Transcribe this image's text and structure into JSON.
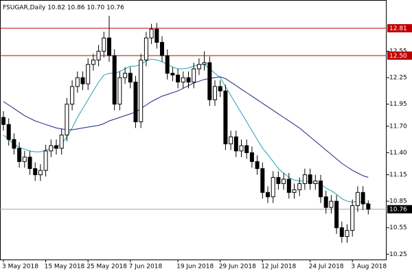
{
  "chart_data": {
    "type": "candlestick",
    "title": "FSUGAR,Daily  10.82 10.86 10.70 10.76",
    "categories": [
      "3 May 2018",
      null,
      null,
      null,
      null,
      null,
      null,
      null,
      "15 May 2018",
      null,
      null,
      null,
      null,
      null,
      null,
      null,
      "25 May 2018",
      null,
      null,
      null,
      null,
      null,
      null,
      null,
      "7 Jun 2018",
      null,
      null,
      null,
      null,
      null,
      null,
      null,
      null,
      "19 Jun 2018",
      null,
      null,
      null,
      null,
      null,
      null,
      null,
      "29 Jun 2018",
      null,
      null,
      null,
      null,
      null,
      null,
      null,
      "12 Jul 2018",
      null,
      null,
      null,
      null,
      null,
      null,
      null,
      null,
      "24 Jul 2018",
      null,
      null,
      null,
      null,
      null,
      null,
      null,
      "3 Aug 2018",
      null,
      null,
      null
    ],
    "candles": {
      "open": [
        11.8,
        11.72,
        11.55,
        11.45,
        11.3,
        11.35,
        11.22,
        11.15,
        11.2,
        11.42,
        11.48,
        11.45,
        11.6,
        11.95,
        12.15,
        12.25,
        12.18,
        12.4,
        12.45,
        12.55,
        12.7,
        12.5,
        11.95,
        12.25,
        12.3,
        12.2,
        11.75,
        12.45,
        12.7,
        12.8,
        12.65,
        12.5,
        12.3,
        12.28,
        12.2,
        12.25,
        12.2,
        12.35,
        12.4,
        12.42,
        12.0,
        12.15,
        12.1,
        11.5,
        11.58,
        11.42,
        11.48,
        11.4,
        11.3,
        11.22,
        10.95,
        10.9,
        11.12,
        11.05,
        11.1,
        10.95,
        10.98,
        11.05,
        11.15,
        11.05,
        11.08,
        10.9,
        10.78,
        10.85,
        10.55,
        10.45,
        10.52,
        10.8,
        10.95,
        10.82
      ],
      "high": [
        11.87,
        11.79,
        11.62,
        11.52,
        11.42,
        11.42,
        11.29,
        11.27,
        11.49,
        11.55,
        11.55,
        11.67,
        12.02,
        12.22,
        12.32,
        12.32,
        12.47,
        12.52,
        12.62,
        12.77,
        12.95,
        12.57,
        12.32,
        12.37,
        12.37,
        12.27,
        12.52,
        12.77,
        12.86,
        12.87,
        12.72,
        12.57,
        12.37,
        12.35,
        12.32,
        12.32,
        12.42,
        12.47,
        12.55,
        12.49,
        12.22,
        12.22,
        12.17,
        11.65,
        11.65,
        11.55,
        11.55,
        11.47,
        11.37,
        11.29,
        11.02,
        11.19,
        11.19,
        11.17,
        11.17,
        11.05,
        11.12,
        11.22,
        11.22,
        11.15,
        11.15,
        10.97,
        10.92,
        10.92,
        10.62,
        10.59,
        10.87,
        11.02,
        11.02,
        10.86
      ],
      "low": [
        11.65,
        11.48,
        11.38,
        11.23,
        11.23,
        11.15,
        11.08,
        11.08,
        11.13,
        11.35,
        11.38,
        11.38,
        11.53,
        11.88,
        12.08,
        12.11,
        12.11,
        12.33,
        12.38,
        12.48,
        12.43,
        11.88,
        11.88,
        12.18,
        12.13,
        11.68,
        11.68,
        12.38,
        12.63,
        12.58,
        12.43,
        12.23,
        12.21,
        12.13,
        12.13,
        12.13,
        12.13,
        12.28,
        12.33,
        11.93,
        11.93,
        12.03,
        11.43,
        11.43,
        11.35,
        11.35,
        11.33,
        11.23,
        11.15,
        10.88,
        10.83,
        10.83,
        10.98,
        10.98,
        10.88,
        10.88,
        10.91,
        10.98,
        10.98,
        10.98,
        10.83,
        10.71,
        10.71,
        10.48,
        10.38,
        10.38,
        10.45,
        10.73,
        10.75,
        10.7
      ],
      "close": [
        11.72,
        11.55,
        11.45,
        11.3,
        11.35,
        11.22,
        11.15,
        11.2,
        11.42,
        11.48,
        11.45,
        11.6,
        11.95,
        12.15,
        12.25,
        12.18,
        12.4,
        12.45,
        12.55,
        12.7,
        12.5,
        11.95,
        12.25,
        12.3,
        12.2,
        11.75,
        12.45,
        12.7,
        12.8,
        12.65,
        12.5,
        12.3,
        12.28,
        12.2,
        12.25,
        12.2,
        12.35,
        12.4,
        12.42,
        12.0,
        12.15,
        12.1,
        11.5,
        11.58,
        11.42,
        11.48,
        11.4,
        11.3,
        11.22,
        10.95,
        10.9,
        11.12,
        11.05,
        11.1,
        10.95,
        10.98,
        11.05,
        11.15,
        11.05,
        11.08,
        10.9,
        10.78,
        10.85,
        10.55,
        10.45,
        10.52,
        10.8,
        10.95,
        10.82,
        10.76
      ]
    },
    "series": [
      {
        "color": "#20a0b0",
        "values": [
          11.6,
          11.55,
          11.5,
          11.46,
          11.44,
          11.42,
          11.41,
          11.41,
          11.43,
          11.45,
          11.47,
          11.5,
          11.58,
          11.68,
          11.8,
          11.9,
          12.0,
          12.1,
          12.2,
          12.28,
          12.3,
          12.3,
          12.32,
          12.35,
          12.38,
          12.38,
          12.4,
          12.44,
          12.46,
          12.45,
          12.43,
          12.4,
          12.37,
          12.35,
          12.35,
          12.36,
          12.38,
          12.4,
          12.4,
          12.35,
          12.3,
          12.25,
          12.15,
          12.05,
          11.95,
          11.85,
          11.75,
          11.65,
          11.55,
          11.45,
          11.38,
          11.3,
          11.22,
          11.17,
          11.12,
          11.09,
          11.08,
          11.08,
          11.07,
          11.06,
          11.04,
          11.0,
          10.97,
          10.93,
          10.88,
          10.85,
          10.84,
          10.85,
          10.84,
          10.82
        ]
      },
      {
        "color": "#1a237e",
        "values": [
          11.98,
          11.94,
          11.9,
          11.86,
          11.82,
          11.79,
          11.76,
          11.74,
          11.72,
          11.7,
          11.68,
          11.67,
          11.66,
          11.66,
          11.67,
          11.68,
          11.69,
          11.7,
          11.71,
          11.73,
          11.76,
          11.78,
          11.8,
          11.82,
          11.84,
          11.86,
          11.9,
          11.94,
          11.98,
          12.01,
          12.04,
          12.06,
          12.08,
          12.1,
          12.13,
          12.16,
          12.19,
          12.21,
          12.23,
          12.24,
          12.25,
          12.26,
          12.24,
          12.2,
          12.16,
          12.12,
          12.08,
          12.04,
          12.0,
          11.96,
          11.92,
          11.88,
          11.84,
          11.8,
          11.76,
          11.72,
          11.68,
          11.63,
          11.58,
          11.53,
          11.48,
          11.43,
          11.38,
          11.33,
          11.28,
          11.24,
          11.2,
          11.17,
          11.14,
          11.12
        ]
      }
    ],
    "ylim": [
      10.19,
      13.13
    ],
    "yticks": [
      12.55,
      12.25,
      11.95,
      {
        "value": 11.7,
        "label": "11.70"
      },
      {
        "value": 11.4,
        "label": "11.40"
      },
      11.15,
      10.85,
      10.55,
      10.25
    ],
    "grid": false,
    "levels": [
      {
        "value": 12.81,
        "label": "12.81",
        "color": "#c00000",
        "box_color": "#c00000"
      },
      {
        "value": 12.5,
        "label": "12.50",
        "color": "#c00000",
        "box_color": "#c00000"
      },
      {
        "value": 10.76,
        "label": "10.76",
        "color": "#a0a0a0",
        "box_color": "#000000"
      }
    ],
    "up_color": "#ffffff",
    "down_color": "#000000"
  }
}
